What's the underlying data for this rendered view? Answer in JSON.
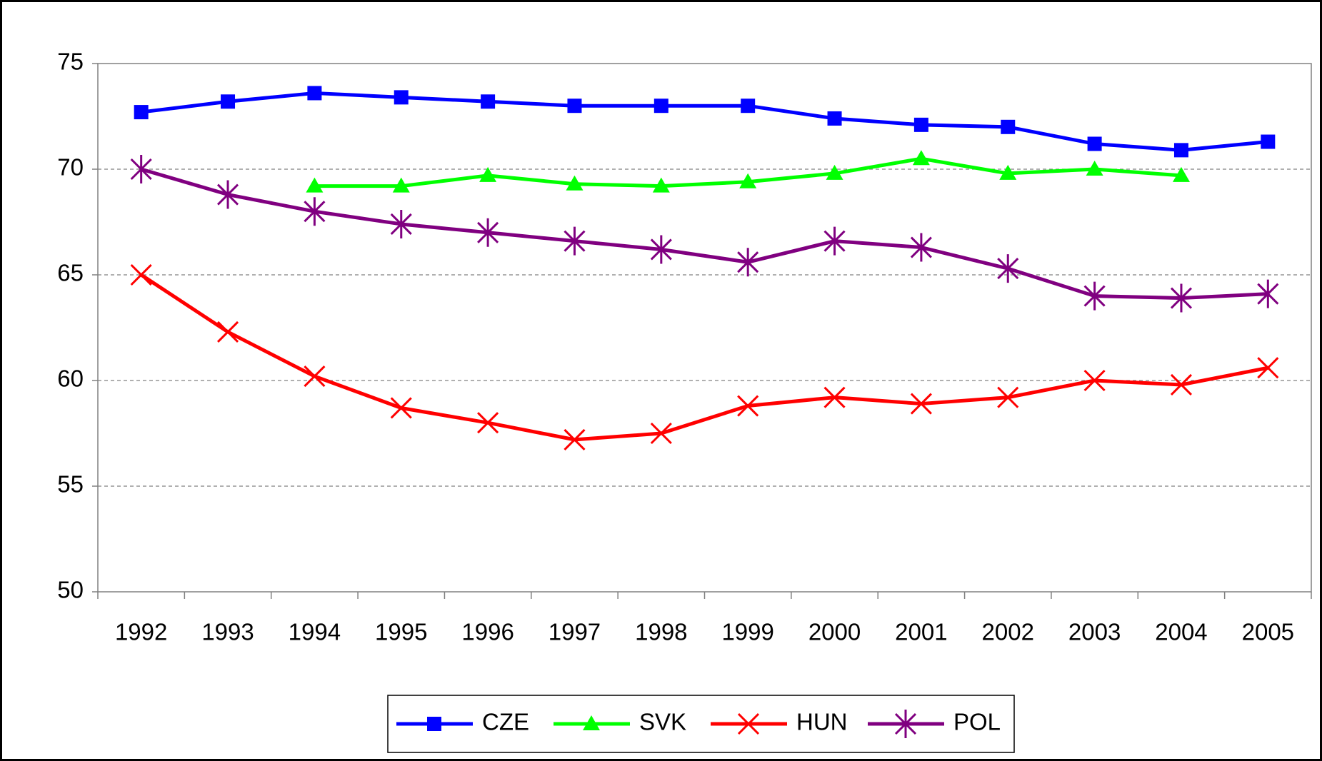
{
  "chart_data": {
    "type": "line",
    "categories": [
      "1992",
      "1993",
      "1994",
      "1995",
      "1996",
      "1997",
      "1998",
      "1999",
      "2000",
      "2001",
      "2002",
      "2003",
      "2004",
      "2005"
    ],
    "series": [
      {
        "name": "CZE",
        "color": "#0000ff",
        "marker": "square",
        "values": [
          72.7,
          73.2,
          73.6,
          73.4,
          73.2,
          73.0,
          73.0,
          73.0,
          72.4,
          72.1,
          72.0,
          71.2,
          70.9,
          71.3
        ]
      },
      {
        "name": "SVK",
        "color": "#00ff00",
        "marker": "triangle",
        "values": [
          null,
          null,
          69.2,
          69.2,
          69.7,
          69.3,
          69.2,
          69.4,
          69.8,
          70.5,
          69.8,
          70.0,
          69.7,
          null
        ]
      },
      {
        "name": "HUN",
        "color": "#ff0000",
        "marker": "x",
        "values": [
          65.0,
          62.3,
          60.2,
          58.7,
          58.0,
          57.2,
          57.5,
          58.8,
          59.2,
          58.9,
          59.2,
          60.0,
          59.8,
          60.6
        ]
      },
      {
        "name": "POL",
        "color": "#800080",
        "marker": "star",
        "values": [
          70.0,
          68.8,
          68.0,
          67.4,
          67.0,
          66.6,
          66.2,
          65.6,
          66.6,
          66.3,
          65.3,
          64.0,
          63.9,
          64.1
        ]
      }
    ],
    "ylim": [
      50,
      75
    ],
    "yticks": [
      50,
      55,
      60,
      65,
      70,
      75
    ],
    "grid": true,
    "legend": "bottom"
  }
}
